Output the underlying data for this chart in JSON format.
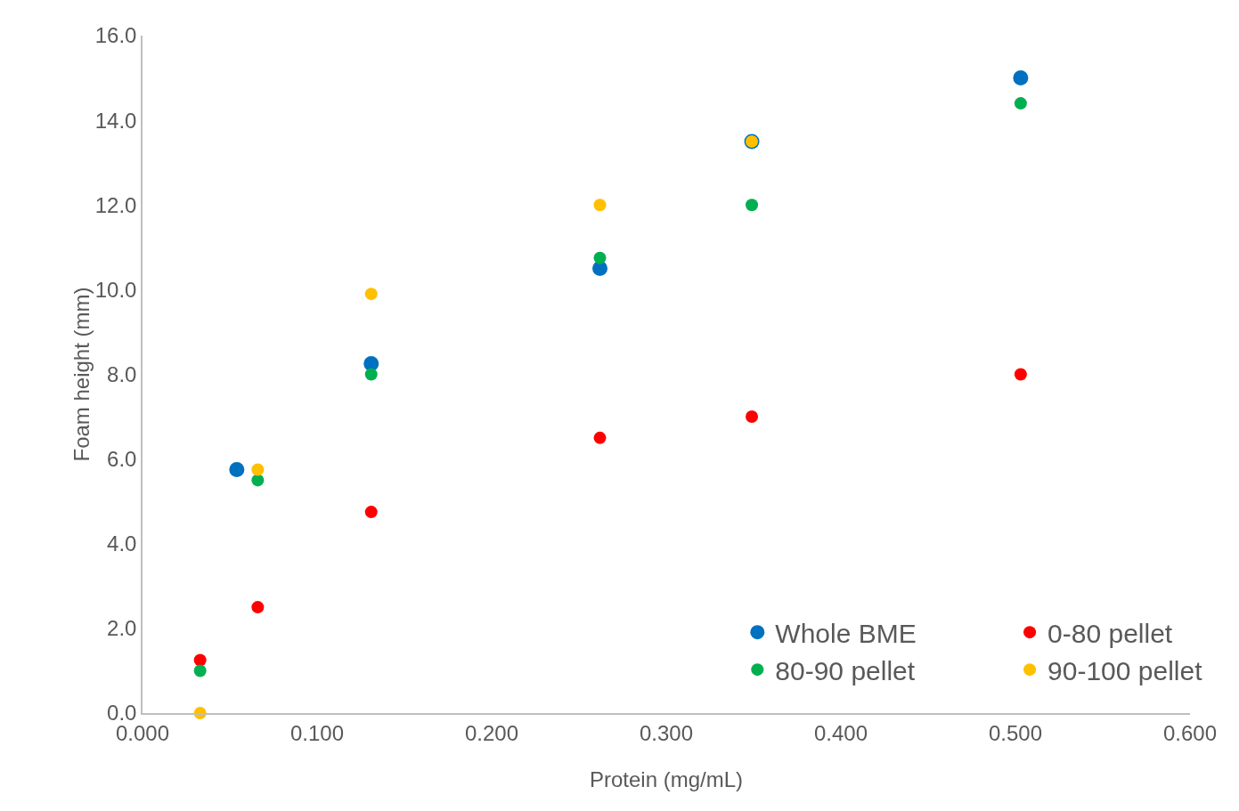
{
  "chart_data": {
    "type": "scatter",
    "xlabel": "Protein (mg/mL)",
    "ylabel": "Foam height (mm)",
    "xlim": [
      0,
      0.6
    ],
    "xticks": [
      {
        "value": 0,
        "label": "0.000"
      },
      {
        "value": 0.1,
        "label": "0.100"
      },
      {
        "value": 0.2,
        "label": "0.200"
      },
      {
        "value": 0.3,
        "label": "0.300"
      },
      {
        "value": 0.4,
        "label": "0.400"
      },
      {
        "value": 0.5,
        "label": "0.500"
      },
      {
        "value": 0.6,
        "label": "0.600"
      }
    ],
    "ylim": [
      0,
      16
    ],
    "yticks": [
      {
        "value": 0,
        "label": "0.0"
      },
      {
        "value": 2,
        "label": "2.0"
      },
      {
        "value": 4,
        "label": "4.0"
      },
      {
        "value": 6,
        "label": "6.0"
      },
      {
        "value": 8,
        "label": "8.0"
      },
      {
        "value": 10,
        "label": "10.0"
      },
      {
        "value": 12,
        "label": "12.0"
      },
      {
        "value": 14,
        "label": "14.0"
      },
      {
        "value": 16,
        "label": "16.0"
      }
    ],
    "grid": false,
    "legend": "bottom right",
    "marker": "circle",
    "series": [
      {
        "name": "Whole BME",
        "color": "#0070c0",
        "x": [
          0.054,
          0.131,
          0.262,
          0.349,
          0.503
        ],
        "values": [
          5.75,
          8.25,
          10.5,
          13.5,
          15.0
        ]
      },
      {
        "name": "0-80 pellet",
        "color": "#ff0000",
        "x": [
          0.033,
          0.066,
          0.131,
          0.262,
          0.349,
          0.503
        ],
        "values": [
          1.25,
          2.5,
          4.75,
          6.5,
          7.0,
          8.0
        ]
      },
      {
        "name": "80-90 pellet",
        "color": "#00b050",
        "x": [
          0.033,
          0.066,
          0.131,
          0.262,
          0.349,
          0.503
        ],
        "values": [
          1.0,
          5.5,
          8.0,
          10.75,
          12.0,
          14.4
        ]
      },
      {
        "name": "90-100 pellet",
        "color": "#ffc000",
        "x": [
          0.033,
          0.066,
          0.131,
          0.262,
          0.349
        ],
        "values": [
          0,
          5.75,
          9.9,
          12.0,
          13.5
        ]
      }
    ]
  }
}
